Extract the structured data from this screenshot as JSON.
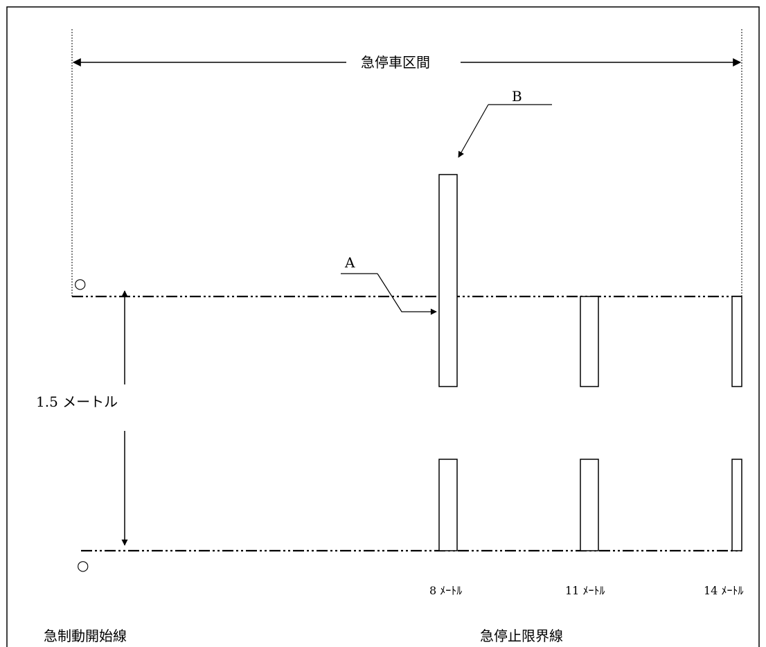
{
  "labels": {
    "section": "急停車区間",
    "marker_b": "B",
    "marker_a": "A",
    "width": "1.5 メートル",
    "dist_8": "8 ﾒｰﾄﾙ",
    "dist_11": "11 ﾒｰﾄﾙ",
    "dist_14": "14 ﾒｰﾄﾙ",
    "start_line": "急制動開始線",
    "stop_line": "急停止限界線",
    "circle_top": "○",
    "circle_bottom": "○"
  }
}
